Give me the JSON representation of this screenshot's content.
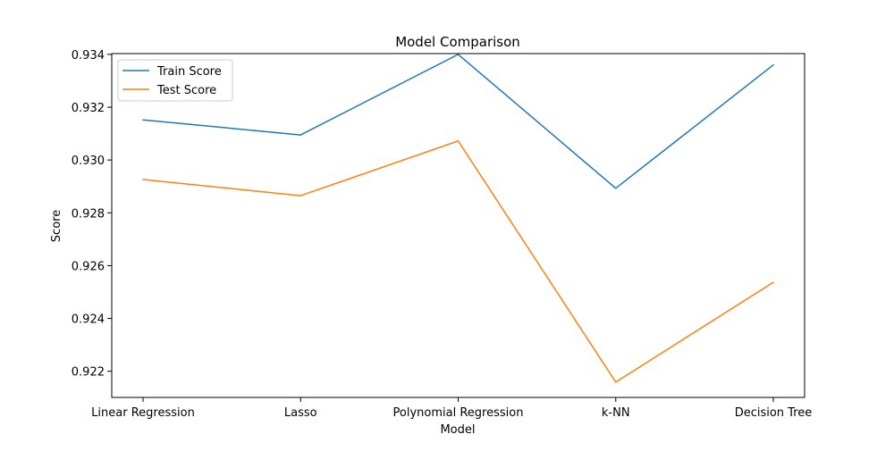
{
  "chart_data": {
    "type": "line",
    "title": "Model Comparison",
    "xlabel": "Model",
    "ylabel": "Score",
    "categories": [
      "Linear Regression",
      "Lasso",
      "Polynomial Regression",
      "k-NN",
      "Decision Tree"
    ],
    "series": [
      {
        "name": "Train Score",
        "color": "#1f77b4",
        "values": [
          0.93152,
          0.93095,
          0.934,
          0.92893,
          0.9336
        ]
      },
      {
        "name": "Test Score",
        "color": "#ff7f0e",
        "values": [
          0.92926,
          0.92865,
          0.93072,
          0.92159,
          0.92537
        ]
      }
    ],
    "ylim": [
      0.92101,
      0.93403
    ],
    "yticks": [
      "0.922",
      "0.924",
      "0.926",
      "0.928",
      "0.930",
      "0.932",
      "0.934"
    ],
    "grid": false,
    "legend": "top-left"
  }
}
